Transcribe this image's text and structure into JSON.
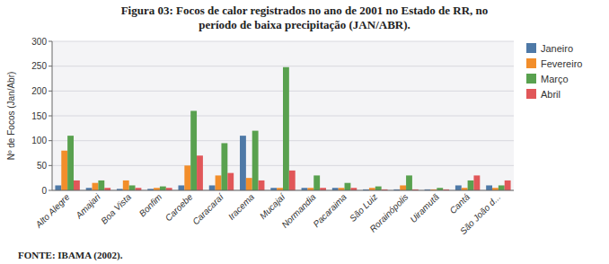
{
  "chart_data": {
    "type": "bar",
    "title": "Figura 03: Focos de calor registrados no ano de 2001 no Estado de RR, no",
    "subtitle": "período de baixa precipitação (JAN/ABR).",
    "annotations": [
      "FONTE: IBAMA (2002)."
    ],
    "ylabel": "Nº de Focos (Jan/Abr)",
    "categories": [
      "Alto Alegre",
      "Amajari",
      "Boa Vista",
      "Bonfim",
      "Caroebe",
      "Caracaraí",
      "Iracema",
      "Mucajaí",
      "Normandia",
      "Pacaraima",
      "São Luiz",
      "Rorainópolis",
      "Uiramutã",
      "Cantá",
      "São João d..."
    ],
    "series": [
      {
        "name": "Janeiro",
        "values": [
          10,
          5,
          3,
          3,
          10,
          10,
          110,
          5,
          5,
          5,
          2,
          2,
          2,
          10,
          10
        ]
      },
      {
        "name": "Fevereiro",
        "values": [
          80,
          15,
          20,
          5,
          50,
          30,
          25,
          5,
          5,
          5,
          5,
          10,
          2,
          5,
          5
        ]
      },
      {
        "name": "Março",
        "values": [
          110,
          20,
          10,
          8,
          160,
          95,
          120,
          248,
          30,
          15,
          8,
          30,
          5,
          20,
          10
        ]
      },
      {
        "name": "Abril",
        "values": [
          20,
          5,
          5,
          5,
          70,
          35,
          20,
          40,
          5,
          5,
          2,
          2,
          2,
          30,
          20
        ]
      }
    ],
    "ylim": [
      0,
      300
    ],
    "yticks": [
      0,
      50,
      100,
      150,
      200,
      250,
      300
    ],
    "grid": true,
    "legend": "upper right"
  }
}
